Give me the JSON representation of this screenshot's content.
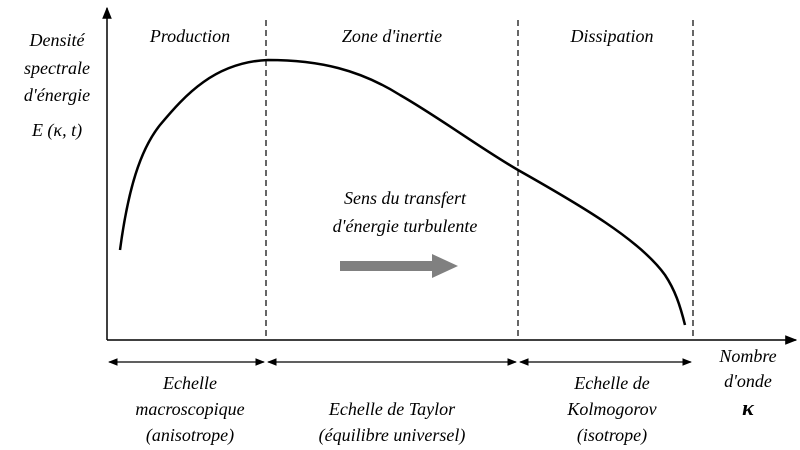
{
  "regions": [
    "Production",
    "Zone d'inertie",
    "Dissipation"
  ],
  "y_axis_label": [
    "Densité",
    "spectrale",
    "d'énergie",
    "E (κ, t)"
  ],
  "x_axis_label": [
    "Nombre",
    "d'onde",
    "κ"
  ],
  "transfer_label": [
    "Sens du transfert",
    "d'énergie turbulente"
  ],
  "scales": [
    [
      "Echelle",
      "macroscopique",
      "(anisotrope)"
    ],
    [
      "Echelle de Taylor",
      "(équilibre universel)"
    ],
    [
      "Echelle de",
      "Kolmogorov",
      "(isotrope)"
    ]
  ]
}
